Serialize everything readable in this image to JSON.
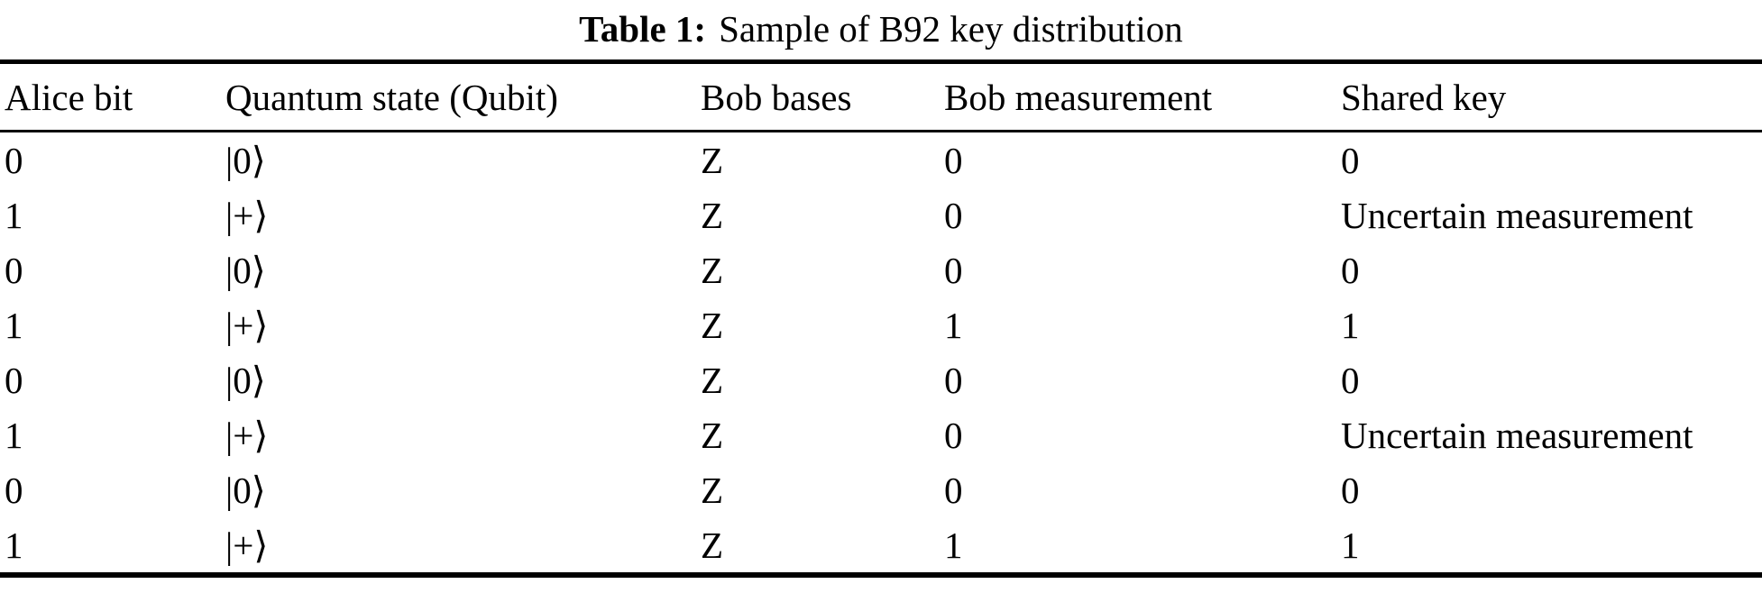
{
  "caption": {
    "label": "Table 1:",
    "text": "Sample of B92 key distribution"
  },
  "table": {
    "columns": [
      "Alice bit",
      "Quantum state (Qubit)",
      "Bob bases",
      "Bob measurement",
      "Shared key"
    ],
    "rows": [
      [
        "0",
        "|0⟩",
        "Z",
        "0",
        "0"
      ],
      [
        "1",
        "|+⟩",
        "Z",
        "0",
        "Uncertain measurement"
      ],
      [
        "0",
        "|0⟩",
        "Z",
        "0",
        "0"
      ],
      [
        "1",
        "|+⟩",
        "Z",
        "1",
        "1"
      ],
      [
        "0",
        "|0⟩",
        "Z",
        "0",
        "0"
      ],
      [
        "1",
        "|+⟩",
        "Z",
        "0",
        "Uncertain measurement"
      ],
      [
        "0",
        "|0⟩",
        "Z",
        "0",
        "0"
      ],
      [
        "1",
        "|+⟩",
        "Z",
        "1",
        "1"
      ]
    ]
  },
  "colors": {
    "text": "#000000",
    "background": "#ffffff",
    "rule": "#000000"
  }
}
